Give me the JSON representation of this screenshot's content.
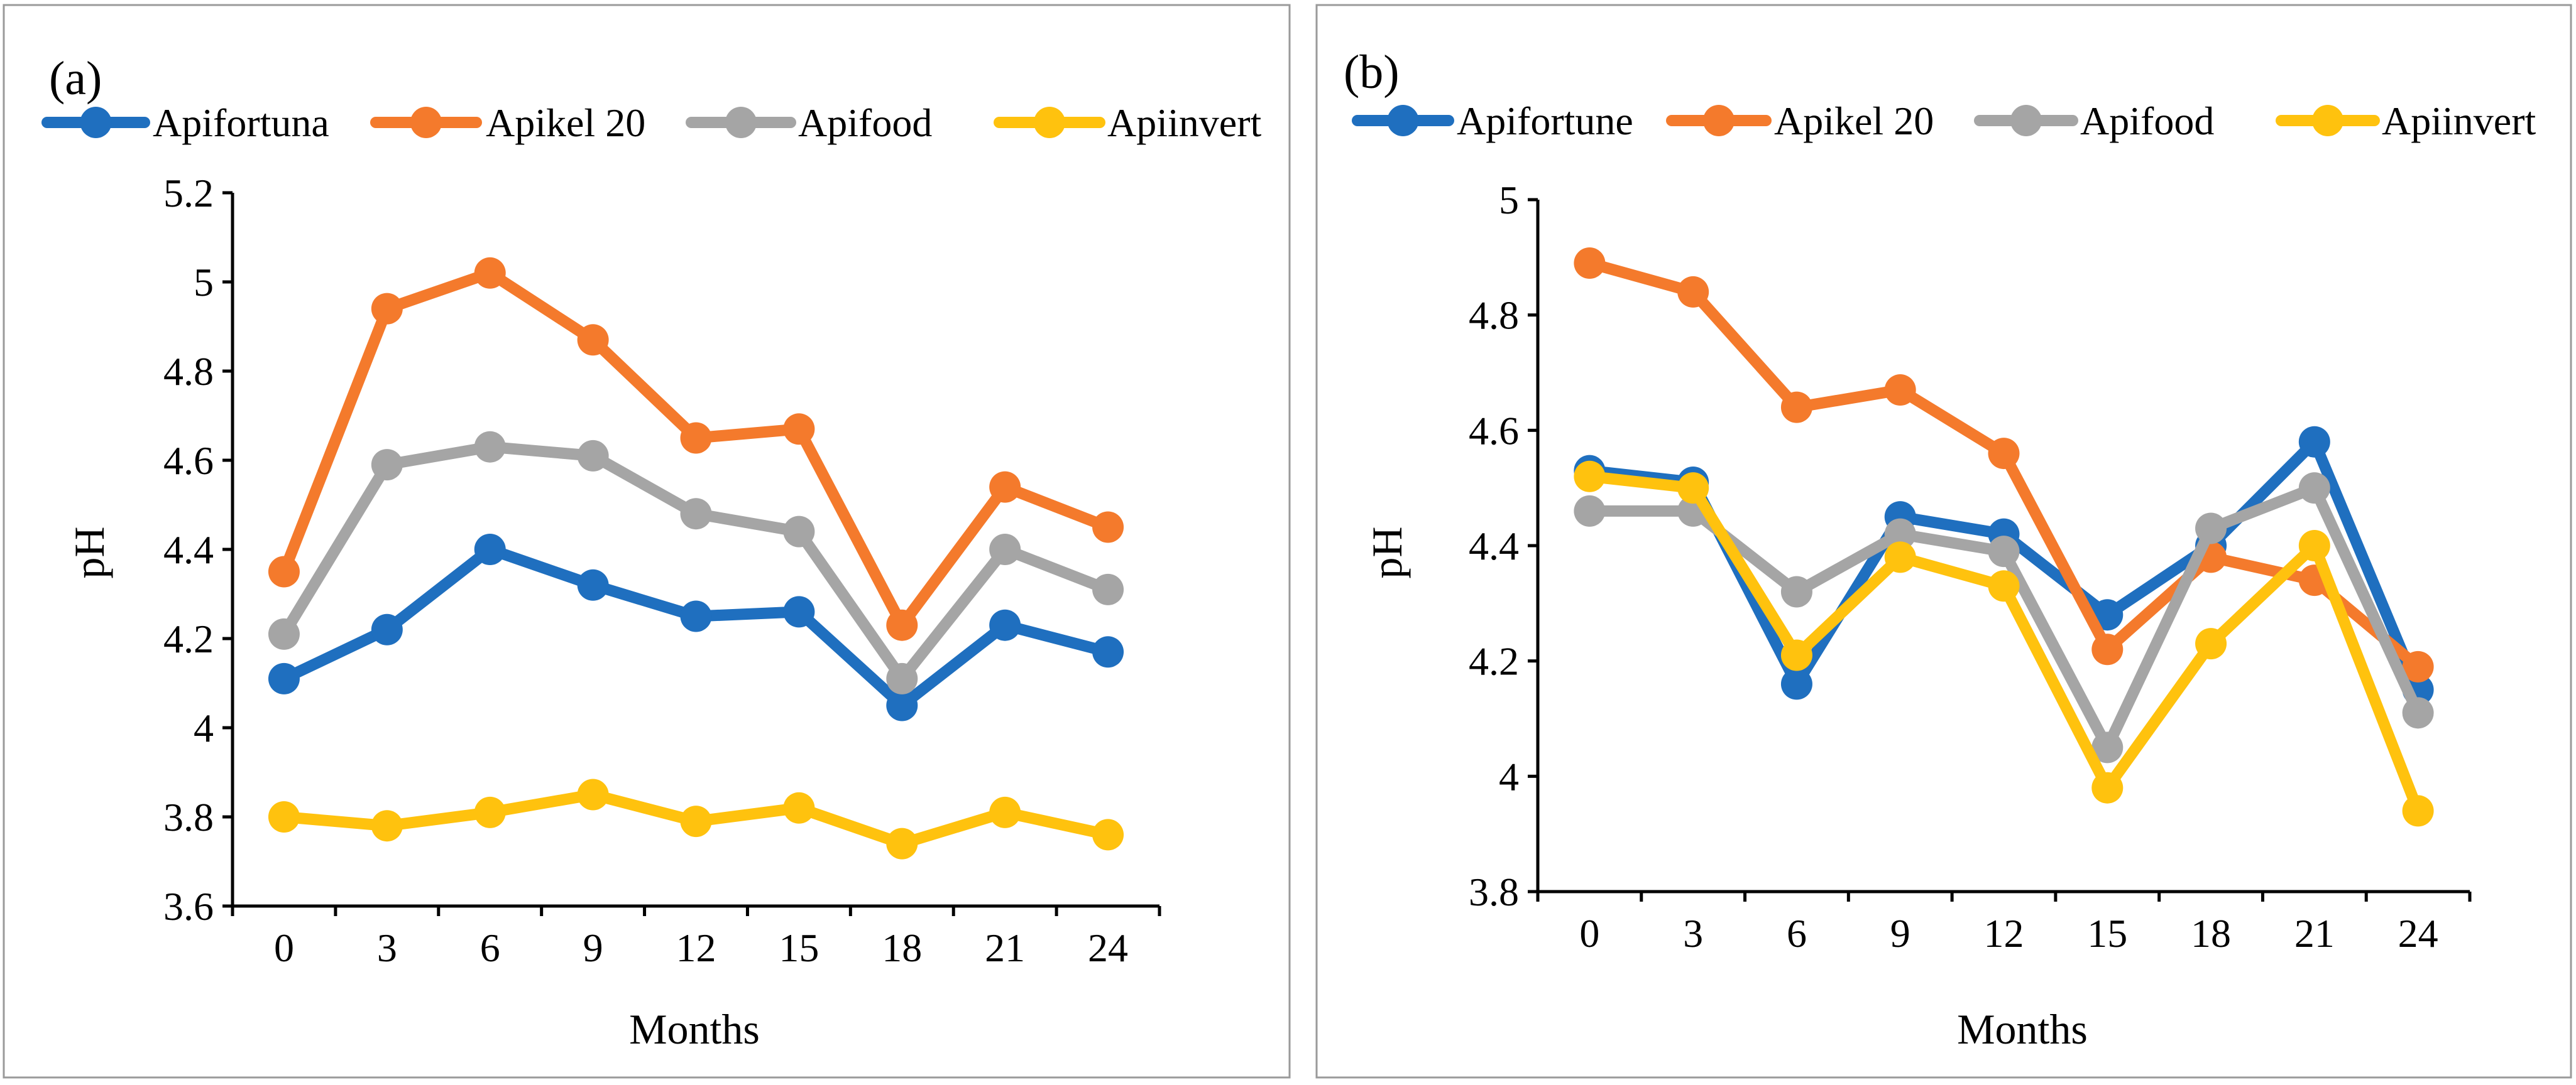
{
  "chart_data": [
    {
      "type": "line",
      "panel_label": "(a)",
      "xlabel": "Months",
      "ylabel": "pH",
      "x": [
        0,
        3,
        6,
        9,
        12,
        15,
        18,
        21,
        24
      ],
      "x_tick_labels": [
        "0",
        "3",
        "6",
        "9",
        "12",
        "15",
        "18",
        "21",
        "24"
      ],
      "ylim": [
        3.6,
        5.2
      ],
      "y_ticks": [
        3.6,
        3.8,
        4,
        4.2,
        4.4,
        4.6,
        4.8,
        5,
        5.2
      ],
      "y_tick_labels": [
        "3.6",
        "3.8",
        "4",
        "4.2",
        "4.4",
        "4.6",
        "4.8",
        "5",
        "5.2"
      ],
      "grid": false,
      "legend_position": "top",
      "series": [
        {
          "name": "Apifortuna",
          "color": "#1F6FBF",
          "values": [
            4.11,
            4.22,
            4.4,
            4.32,
            4.25,
            4.26,
            4.05,
            4.23,
            4.17
          ]
        },
        {
          "name": "Apikel 20",
          "color": "#F47A2C",
          "values": [
            4.35,
            4.94,
            5.02,
            4.87,
            4.65,
            4.67,
            4.23,
            4.54,
            4.45
          ]
        },
        {
          "name": "Apifood",
          "color": "#A5A5A5",
          "values": [
            4.21,
            4.59,
            4.63,
            4.61,
            4.48,
            4.44,
            4.11,
            4.4,
            4.31
          ]
        },
        {
          "name": "Apiinvert",
          "color": "#FFC20E",
          "values": [
            3.8,
            3.78,
            3.81,
            3.85,
            3.79,
            3.82,
            3.74,
            3.81,
            3.76
          ]
        }
      ]
    },
    {
      "type": "line",
      "panel_label": "(b)",
      "xlabel": "Months",
      "ylabel": "pH",
      "x": [
        0,
        3,
        6,
        9,
        12,
        15,
        18,
        21,
        24
      ],
      "x_tick_labels": [
        "0",
        "3",
        "6",
        "9",
        "12",
        "15",
        "18",
        "21",
        "24"
      ],
      "ylim": [
        3.8,
        5.0
      ],
      "y_ticks": [
        3.8,
        4,
        4.2,
        4.4,
        4.6,
        4.8,
        5
      ],
      "y_tick_labels": [
        "3.8",
        "4",
        "4.2",
        "4.4",
        "4.6",
        "4.8",
        "5"
      ],
      "grid": false,
      "legend_position": "top",
      "series": [
        {
          "name": "Apifortune",
          "color": "#1F6FBF",
          "values": [
            4.53,
            4.51,
            4.16,
            4.45,
            4.42,
            4.28,
            4.4,
            4.58,
            4.15
          ]
        },
        {
          "name": "Apikel 20",
          "color": "#F47A2C",
          "values": [
            4.89,
            4.84,
            4.64,
            4.67,
            4.56,
            4.22,
            4.38,
            4.34,
            4.19
          ]
        },
        {
          "name": "Apifood",
          "color": "#A5A5A5",
          "values": [
            4.46,
            4.46,
            4.32,
            4.42,
            4.39,
            4.05,
            4.43,
            4.5,
            4.11
          ]
        },
        {
          "name": "Apiinvert",
          "color": "#FFC20E",
          "values": [
            4.52,
            4.5,
            4.21,
            4.38,
            4.33,
            3.98,
            4.23,
            4.4,
            3.94
          ]
        }
      ]
    }
  ]
}
